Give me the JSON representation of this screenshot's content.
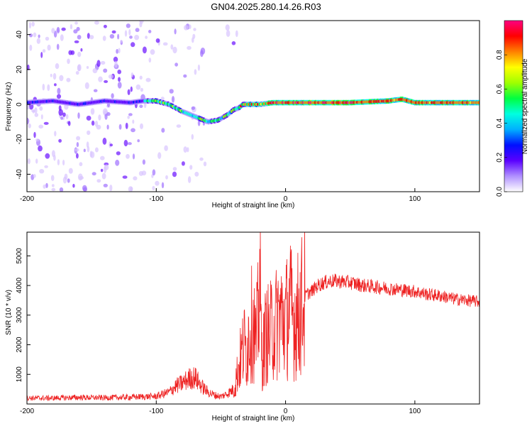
{
  "title": "GN04.2025.280.14.26.R03",
  "chart_data": [
    {
      "type": "heatmap",
      "title": "GN04.2025.280.14.26.R03",
      "xlabel": "Height of straight line (km)",
      "ylabel": "Frequency (Hz)",
      "xlim": [
        -200,
        150
      ],
      "ylim": [
        -50,
        48
      ],
      "x_ticks": [
        -200,
        -100,
        0,
        100
      ],
      "x_tick_labels": [
        "-200",
        "-100",
        "0",
        "100"
      ],
      "y_ticks": [
        -40,
        -20,
        0,
        20,
        40
      ],
      "y_tick_labels": [
        "-40",
        "-20",
        "0",
        "20",
        "40"
      ],
      "signal_trace": {
        "x": [
          -200,
          -180,
          -160,
          -140,
          -120,
          -110,
          -100,
          -90,
          -80,
          -70,
          -60,
          -52,
          -45,
          -40,
          -36,
          -33,
          -30,
          -25,
          -20,
          -10,
          0,
          20,
          50,
          80,
          90,
          100,
          120,
          150
        ],
        "y": [
          1,
          2,
          0,
          2,
          1,
          2,
          2,
          0,
          -4,
          -7,
          -10,
          -9,
          -6,
          -3,
          -2,
          0,
          0,
          0,
          0,
          1,
          1,
          1,
          1,
          2,
          3,
          1,
          1,
          1
        ]
      },
      "colorbar": {
        "label": "Normalized spectral amplitude",
        "range": [
          0,
          1
        ],
        "ticks": [
          0.0,
          0.2,
          0.4,
          0.6,
          0.8
        ],
        "tick_labels": [
          "0.0",
          "0.2",
          "0.4",
          "0.6",
          "0.8"
        ],
        "colormap": [
          "#ffffff",
          "#b090ff",
          "#5a00ff",
          "#0010ff",
          "#00b0ff",
          "#00ffe0",
          "#00ff40",
          "#a0ff00",
          "#ffff00",
          "#ff8000",
          "#ff0000",
          "#ff0080"
        ]
      }
    },
    {
      "type": "line",
      "xlabel": "Height of straight line (km)",
      "ylabel": "SNR (10 * v/v)",
      "xlim": [
        -200,
        150
      ],
      "ylim": [
        0,
        5800
      ],
      "x_ticks": [
        -200,
        -100,
        0,
        100
      ],
      "x_tick_labels": [
        "-200",
        "-100",
        "0",
        "100"
      ],
      "y_ticks": [
        1000,
        2000,
        3000,
        4000,
        5000
      ],
      "y_tick_labels": [
        "1000",
        "2000",
        "3000",
        "4000",
        "5000"
      ],
      "line_color": "#ee2222",
      "series": [
        {
          "name": "SNR",
          "x": [
            -200,
            -180,
            -160,
            -140,
            -120,
            -100,
            -90,
            -85,
            -80,
            -75,
            -70,
            -65,
            -60,
            -55,
            -50,
            -45,
            -40,
            -38,
            -35,
            -32,
            -30,
            -28,
            -25,
            -23,
            -21,
            -20,
            -19,
            -18,
            -16,
            -14,
            -12,
            -10,
            -8,
            -5,
            -2,
            0,
            3,
            6,
            10,
            13,
            16,
            20,
            25,
            30,
            35,
            40,
            50,
            60,
            70,
            80,
            90,
            100,
            110,
            120,
            130,
            140,
            150
          ],
          "y": [
            200,
            200,
            220,
            210,
            230,
            260,
            400,
            600,
            700,
            850,
            900,
            600,
            400,
            300,
            250,
            350,
            500,
            900,
            1500,
            2000,
            1800,
            2500,
            2800,
            2000,
            3000,
            4500,
            2500,
            1500,
            2200,
            2400,
            2300,
            2700,
            2600,
            3000,
            2900,
            2800,
            3300,
            2900,
            3000,
            3400,
            3700,
            3800,
            4000,
            4100,
            4150,
            4150,
            4100,
            4000,
            3950,
            3900,
            3850,
            3800,
            3700,
            3650,
            3550,
            3500,
            3450
          ]
        }
      ]
    }
  ]
}
